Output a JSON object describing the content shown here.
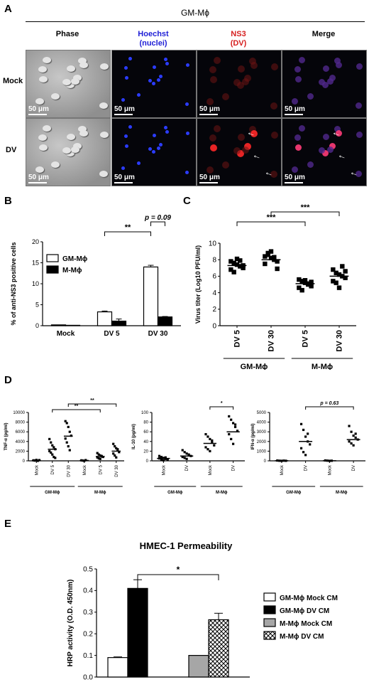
{
  "panel_a": {
    "label": "A",
    "group_title": "GM-Mϕ",
    "columns": [
      {
        "line1": "Phase",
        "line2": "",
        "color": "#000000"
      },
      {
        "line1": "Hoechst",
        "line2": "(nuclei)",
        "color": "#1f1fd6"
      },
      {
        "line1": "NS3",
        "line2": "(DV)",
        "color": "#d61f1f"
      },
      {
        "line1": "Merge",
        "line2": "",
        "color": "#000000"
      }
    ],
    "rows": [
      "Mock",
      "DV"
    ],
    "scale_bar": "50 μm"
  },
  "chart_data": [
    {
      "panel": "B",
      "type": "bar",
      "ylabel": "% of anti-NS3 positive cells",
      "ylim": [
        0,
        20
      ],
      "yticks": [
        0,
        5,
        10,
        15,
        20
      ],
      "categories": [
        "Mock",
        "DV 5",
        "DV 30"
      ],
      "series": [
        {
          "name": "GM-Mϕ",
          "values": [
            0.2,
            3.3,
            14.0
          ],
          "errors": [
            0,
            0.2,
            0.4
          ],
          "color": "#ffffff"
        },
        {
          "name": "M-Mϕ",
          "values": [
            0.1,
            1.1,
            2.1
          ],
          "errors": [
            0,
            0.5,
            0.1
          ],
          "color": "#000000"
        }
      ],
      "annotations": [
        {
          "text": "**",
          "from": "DV 5",
          "to": "DV 30"
        },
        {
          "text": "p = 0.09",
          "from": "DV 30 GM",
          "to": "DV 30 M"
        }
      ],
      "legend_placement": "top-left"
    },
    {
      "panel": "C",
      "type": "scatter",
      "ylabel": "Virus titer (Log10 PFU/ml)",
      "ylim": [
        0,
        10
      ],
      "yticks": [
        0,
        2,
        4,
        6,
        8,
        10
      ],
      "categories": [
        "DV 5",
        "DV 30",
        "DV 5",
        "DV 30"
      ],
      "groups": [
        {
          "label": "GM-Mϕ",
          "categories": [
            0,
            1
          ]
        },
        {
          "label": "M-Mϕ",
          "categories": [
            2,
            3
          ]
        }
      ],
      "points": [
        [
          7.8,
          7.6,
          7.4,
          7.2,
          7.0,
          6.8,
          6.5,
          8.1,
          7.9,
          7.3
        ],
        [
          8.4,
          8.6,
          8.2,
          8.0,
          7.8,
          7.5,
          8.8,
          9.0,
          8.3,
          6.9
        ],
        [
          5.6,
          5.4,
          5.2,
          5.0,
          4.8,
          4.6,
          4.3,
          5.5,
          5.1,
          5.3
        ],
        [
          6.8,
          6.4,
          6.2,
          6.0,
          5.8,
          5.4,
          5.2,
          4.6,
          7.2,
          6.6
        ]
      ],
      "means": [
        7.3,
        8.0,
        5.1,
        6.0
      ],
      "annotations": [
        {
          "text": "***",
          "from": "GM DV 5",
          "to": "M DV 5"
        },
        {
          "text": "***",
          "from": "GM DV 30",
          "to": "M DV 30"
        }
      ]
    },
    {
      "panel": "D1",
      "type": "scatter",
      "ylabel": "TNF-α (pg/ml)",
      "ylim": [
        0,
        10000
      ],
      "yticks": [
        0,
        2000,
        4000,
        6000,
        8000,
        10000
      ],
      "categories": [
        "Mock",
        "DV 5",
        "DV 30",
        "Mock",
        "DV 5",
        "DV 30"
      ],
      "groups": [
        {
          "label": "GM-Mϕ",
          "categories": [
            0,
            1,
            2
          ]
        },
        {
          "label": "M-Mϕ",
          "categories": [
            3,
            4,
            5
          ]
        }
      ],
      "points": [
        [
          100,
          50,
          200,
          0,
          150
        ],
        [
          4500,
          3800,
          3200,
          2800,
          2400,
          2000,
          1700,
          1300,
          800,
          600
        ],
        [
          8200,
          7800,
          7000,
          6000,
          5200,
          4600,
          3800,
          3000,
          2200
        ],
        [
          100,
          50,
          0,
          150
        ],
        [
          1600,
          1300,
          1100,
          900,
          800,
          700,
          500,
          400,
          1000
        ],
        [
          3500,
          3000,
          2600,
          2200,
          1800,
          1500,
          1100,
          700,
          2400
        ]
      ],
      "means": [
        100,
        2400,
        5100,
        80,
        900,
        2000
      ],
      "annotations": [
        {
          "text": "**",
          "from": "GM DV 5",
          "to": "M DV 5"
        },
        {
          "text": "**",
          "from": "GM DV 30",
          "to": "M DV 30"
        }
      ]
    },
    {
      "panel": "D2",
      "type": "scatter",
      "ylabel": "IL-10 (pg/ml)",
      "ylim": [
        0,
        100
      ],
      "yticks": [
        0,
        20,
        40,
        60,
        80,
        100
      ],
      "categories": [
        "Mock",
        "DV",
        "Mock",
        "DV"
      ],
      "groups": [
        {
          "label": "GM-Mϕ",
          "categories": [
            0,
            1
          ]
        },
        {
          "label": "M-Mϕ",
          "categories": [
            2,
            3
          ]
        }
      ],
      "points": [
        [
          10,
          8,
          6,
          4,
          2,
          5,
          3,
          1,
          7
        ],
        [
          22,
          18,
          15,
          12,
          10,
          8,
          6,
          4,
          13
        ],
        [
          55,
          50,
          45,
          38,
          32,
          28,
          24,
          20,
          42
        ],
        [
          92,
          85,
          78,
          70,
          62,
          55,
          45,
          35,
          75
        ]
      ],
      "means": [
        5,
        10,
        36,
        60
      ],
      "annotations": [
        {
          "text": "*",
          "from": "M Mock",
          "to": "M DV"
        }
      ]
    },
    {
      "panel": "D3",
      "type": "scatter",
      "ylabel": "IFN-α (pg/ml)",
      "ylim": [
        0,
        5000
      ],
      "yticks": [
        0,
        1000,
        2000,
        3000,
        4000,
        5000
      ],
      "categories": [
        "Mock",
        "DV",
        "Mock",
        "DV"
      ],
      "groups": [
        {
          "label": "GM-Mϕ",
          "categories": [
            0,
            1
          ]
        },
        {
          "label": "M-Mϕ",
          "categories": [
            2,
            3
          ]
        }
      ],
      "points": [
        [
          30,
          10,
          0,
          20,
          5
        ],
        [
          3800,
          3200,
          2500,
          2000,
          1700,
          1300,
          900,
          600,
          2800
        ],
        [
          40,
          20,
          0,
          10
        ],
        [
          3600,
          3000,
          2600,
          2400,
          2200,
          2000,
          1800,
          1600,
          2800
        ]
      ],
      "means": [
        10,
        2000,
        10,
        2200
      ],
      "annotations": [
        {
          "text": "p = 0.63",
          "from": "GM DV",
          "to": "M DV"
        }
      ]
    },
    {
      "panel": "E",
      "type": "bar",
      "title": "HMEC-1 Permeability",
      "ylabel": "HRP activity (O.D. 450nm)",
      "ylim": [
        0,
        0.5
      ],
      "yticks": [
        0.0,
        0.1,
        0.2,
        0.3,
        0.4,
        0.5
      ],
      "series": [
        {
          "name": "GM-Mϕ Mock CM",
          "value": 0.09,
          "error": 0.003,
          "fill": "white"
        },
        {
          "name": "GM-Mϕ DV CM",
          "value": 0.41,
          "error": 0.04,
          "fill": "black"
        },
        {
          "name": "M-Mϕ Mock CM",
          "value": 0.1,
          "error": 0.0,
          "fill": "gray"
        },
        {
          "name": "M-Mϕ DV CM",
          "value": 0.265,
          "error": 0.03,
          "fill": "crosshatch"
        }
      ],
      "annotations": [
        {
          "text": "*",
          "from": "GM-Mϕ DV CM",
          "to": "M-Mϕ DV CM"
        }
      ],
      "legend_placement": "right"
    }
  ],
  "labels": {
    "b": "B",
    "c": "C",
    "d": "D",
    "e": "E"
  }
}
